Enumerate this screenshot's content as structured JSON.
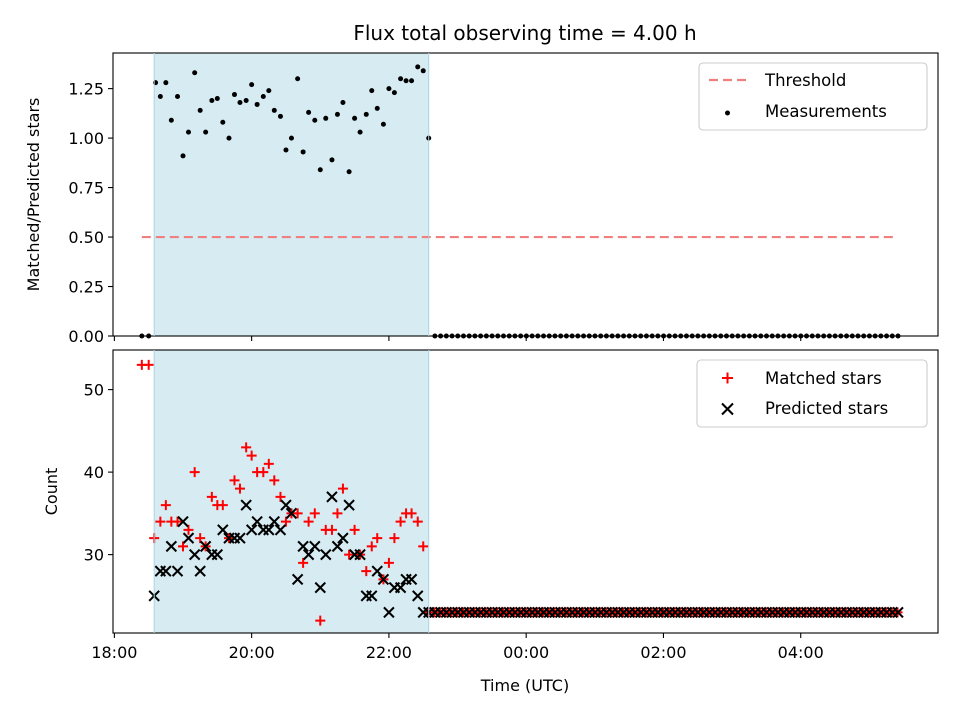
{
  "chart_data": [
    {
      "type": "scatter",
      "title": "Flux total observing time = 4.00 h",
      "xlabel": "",
      "ylabel": "Matched/Predicted stars",
      "ylim": [
        0.0,
        1.43
      ],
      "yticks": [
        0.0,
        0.25,
        0.5,
        0.75,
        1.0,
        1.25
      ],
      "ytick_labels": [
        "0.00",
        "0.25",
        "0.50",
        "0.75",
        "1.00",
        "1.25"
      ],
      "shaded_interval_h": [
        18.58,
        22.58
      ],
      "threshold": {
        "name": "Threshold",
        "value": 0.5,
        "x_range_h": [
          18.4,
          29.4
        ],
        "color": "#f08080"
      },
      "legend": [
        "Threshold",
        "Measurements"
      ],
      "series": [
        {
          "name": "Measurements",
          "color": "#000000",
          "x_h": [
            18.4,
            18.5,
            18.6,
            18.67,
            18.75,
            18.83,
            18.92,
            19.0,
            19.08,
            19.17,
            19.25,
            19.33,
            19.42,
            19.5,
            19.58,
            19.67,
            19.75,
            19.83,
            19.92,
            20.0,
            20.08,
            20.17,
            20.25,
            20.33,
            20.42,
            20.5,
            20.58,
            20.67,
            20.75,
            20.83,
            20.92,
            21.0,
            21.08,
            21.17,
            21.25,
            21.33,
            21.42,
            21.5,
            21.58,
            21.67,
            21.75,
            21.83,
            21.92,
            22.0,
            22.08,
            22.17,
            22.25,
            22.33,
            22.42,
            22.5,
            22.58
          ],
          "values": [
            0,
            0,
            1.28,
            1.21,
            1.28,
            1.09,
            1.21,
            0.91,
            1.03,
            1.33,
            1.14,
            1.03,
            1.19,
            1.2,
            1.08,
            1.0,
            1.22,
            1.18,
            1.19,
            1.27,
            1.17,
            1.21,
            1.24,
            1.14,
            1.11,
            0.94,
            1.0,
            1.3,
            0.93,
            1.13,
            1.09,
            0.84,
            1.1,
            0.89,
            1.12,
            1.18,
            0.83,
            1.1,
            1.03,
            1.12,
            1.24,
            1.15,
            1.07,
            1.25,
            1.23,
            1.3,
            1.29,
            1.29,
            1.36,
            1.34,
            1.0
          ],
          "zero_run": {
            "value": 0,
            "x_start_h": 22.67,
            "x_end_h": 29.42,
            "step_h": 0.0833
          }
        }
      ]
    },
    {
      "type": "scatter",
      "title": "",
      "xlabel": "Time (UTC)",
      "ylabel": "Count",
      "ylim": [
        20.5,
        54.8
      ],
      "yticks": [
        30,
        40,
        50
      ],
      "ytick_labels": [
        "30",
        "40",
        "50"
      ],
      "xlim_h": [
        17.98,
        30.0
      ],
      "xticks_h": [
        18,
        20,
        22,
        24,
        26,
        28
      ],
      "xtick_labels": [
        "18:00",
        "20:00",
        "22:00",
        "00:00",
        "02:00",
        "04:00"
      ],
      "shaded_interval_h": [
        18.58,
        22.58
      ],
      "legend": [
        "Matched stars",
        "Predicted stars"
      ],
      "series": [
        {
          "name": "Matched stars",
          "marker": "+",
          "color": "#ff0000",
          "x_h": [
            18.4,
            18.5,
            18.58,
            18.67,
            18.75,
            18.83,
            18.92,
            19.0,
            19.08,
            19.17,
            19.25,
            19.33,
            19.42,
            19.5,
            19.58,
            19.67,
            19.75,
            19.83,
            19.92,
            20.0,
            20.08,
            20.17,
            20.25,
            20.33,
            20.42,
            20.5,
            20.58,
            20.67,
            20.75,
            20.83,
            20.92,
            21.0,
            21.08,
            21.17,
            21.25,
            21.33,
            21.42,
            21.5,
            21.58,
            21.67,
            21.75,
            21.83,
            21.92,
            22.0,
            22.08,
            22.17,
            22.25,
            22.33,
            22.42,
            22.5
          ],
          "values": [
            53,
            53,
            32,
            34,
            36,
            34,
            34,
            31,
            33,
            40,
            32,
            31,
            37,
            36,
            36,
            32,
            39,
            38,
            43,
            42,
            40,
            40,
            41,
            39,
            37,
            34,
            35,
            35,
            29,
            34,
            35,
            22,
            33,
            33,
            35,
            38,
            30,
            33,
            30,
            28,
            31,
            32,
            27,
            29,
            32,
            34,
            35,
            35,
            34,
            31
          ],
          "flat_run": {
            "value": 23,
            "x_start_h": 22.58,
            "x_end_h": 29.42,
            "step_h": 0.0833
          }
        },
        {
          "name": "Predicted stars",
          "marker": "x",
          "color": "#000000",
          "x_h": [
            18.58,
            18.67,
            18.75,
            18.83,
            18.92,
            19.0,
            19.08,
            19.17,
            19.25,
            19.33,
            19.42,
            19.5,
            19.58,
            19.67,
            19.75,
            19.83,
            19.92,
            20.0,
            20.08,
            20.17,
            20.25,
            20.33,
            20.42,
            20.5,
            20.58,
            20.67,
            20.75,
            20.83,
            20.92,
            21.0,
            21.08,
            21.17,
            21.25,
            21.33,
            21.42,
            21.5,
            21.58,
            21.67,
            21.75,
            21.83,
            21.92,
            22.0,
            22.08,
            22.17,
            22.25,
            22.33,
            22.42,
            22.5,
            22.58
          ],
          "values": [
            25,
            28,
            28,
            31,
            28,
            34,
            32,
            30,
            28,
            31,
            30,
            30,
            33,
            32,
            32,
            32,
            36,
            33,
            34,
            33,
            33,
            34,
            33,
            36,
            35,
            27,
            31,
            30,
            31,
            26,
            30,
            37,
            31,
            32,
            36,
            30,
            30,
            25,
            25,
            28,
            27,
            23,
            26,
            26,
            27,
            27,
            25,
            23,
            23
          ],
          "flat_run": {
            "value": 23,
            "x_start_h": 22.67,
            "x_end_h": 29.42,
            "step_h": 0.0833
          }
        }
      ]
    }
  ],
  "colors": {
    "shade": "#add8e6",
    "threshold": "#f08080",
    "matched": "#ff0000",
    "predicted": "#000000"
  }
}
